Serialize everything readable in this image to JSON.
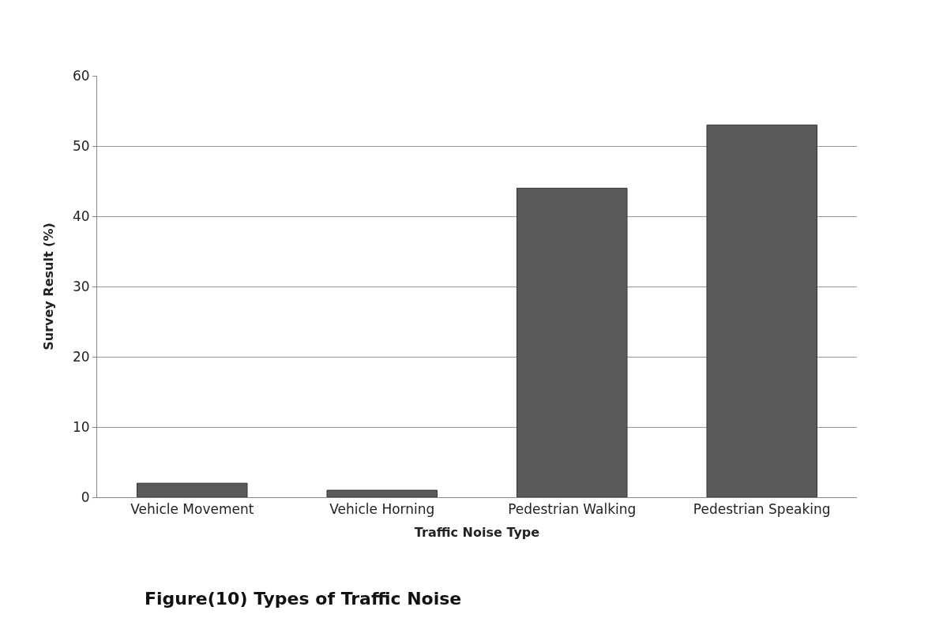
{
  "chart_data": {
    "type": "bar",
    "xlabel": "Traffic Noise Type",
    "ylabel": "Survey Result (%)",
    "categories": [
      "Vehicle Movement",
      "Vehicle Horning",
      "Pedestrian Walking",
      "Pedestrian Speaking"
    ],
    "values": [
      2,
      1,
      44,
      53
    ],
    "color": "#5a5a5a",
    "ylim": [
      0,
      60
    ],
    "yticks": [
      0,
      10,
      20,
      30,
      40,
      50,
      60
    ],
    "grid": "y",
    "annotations": [
      "Figure(10) Types of Traffic Noise"
    ]
  }
}
